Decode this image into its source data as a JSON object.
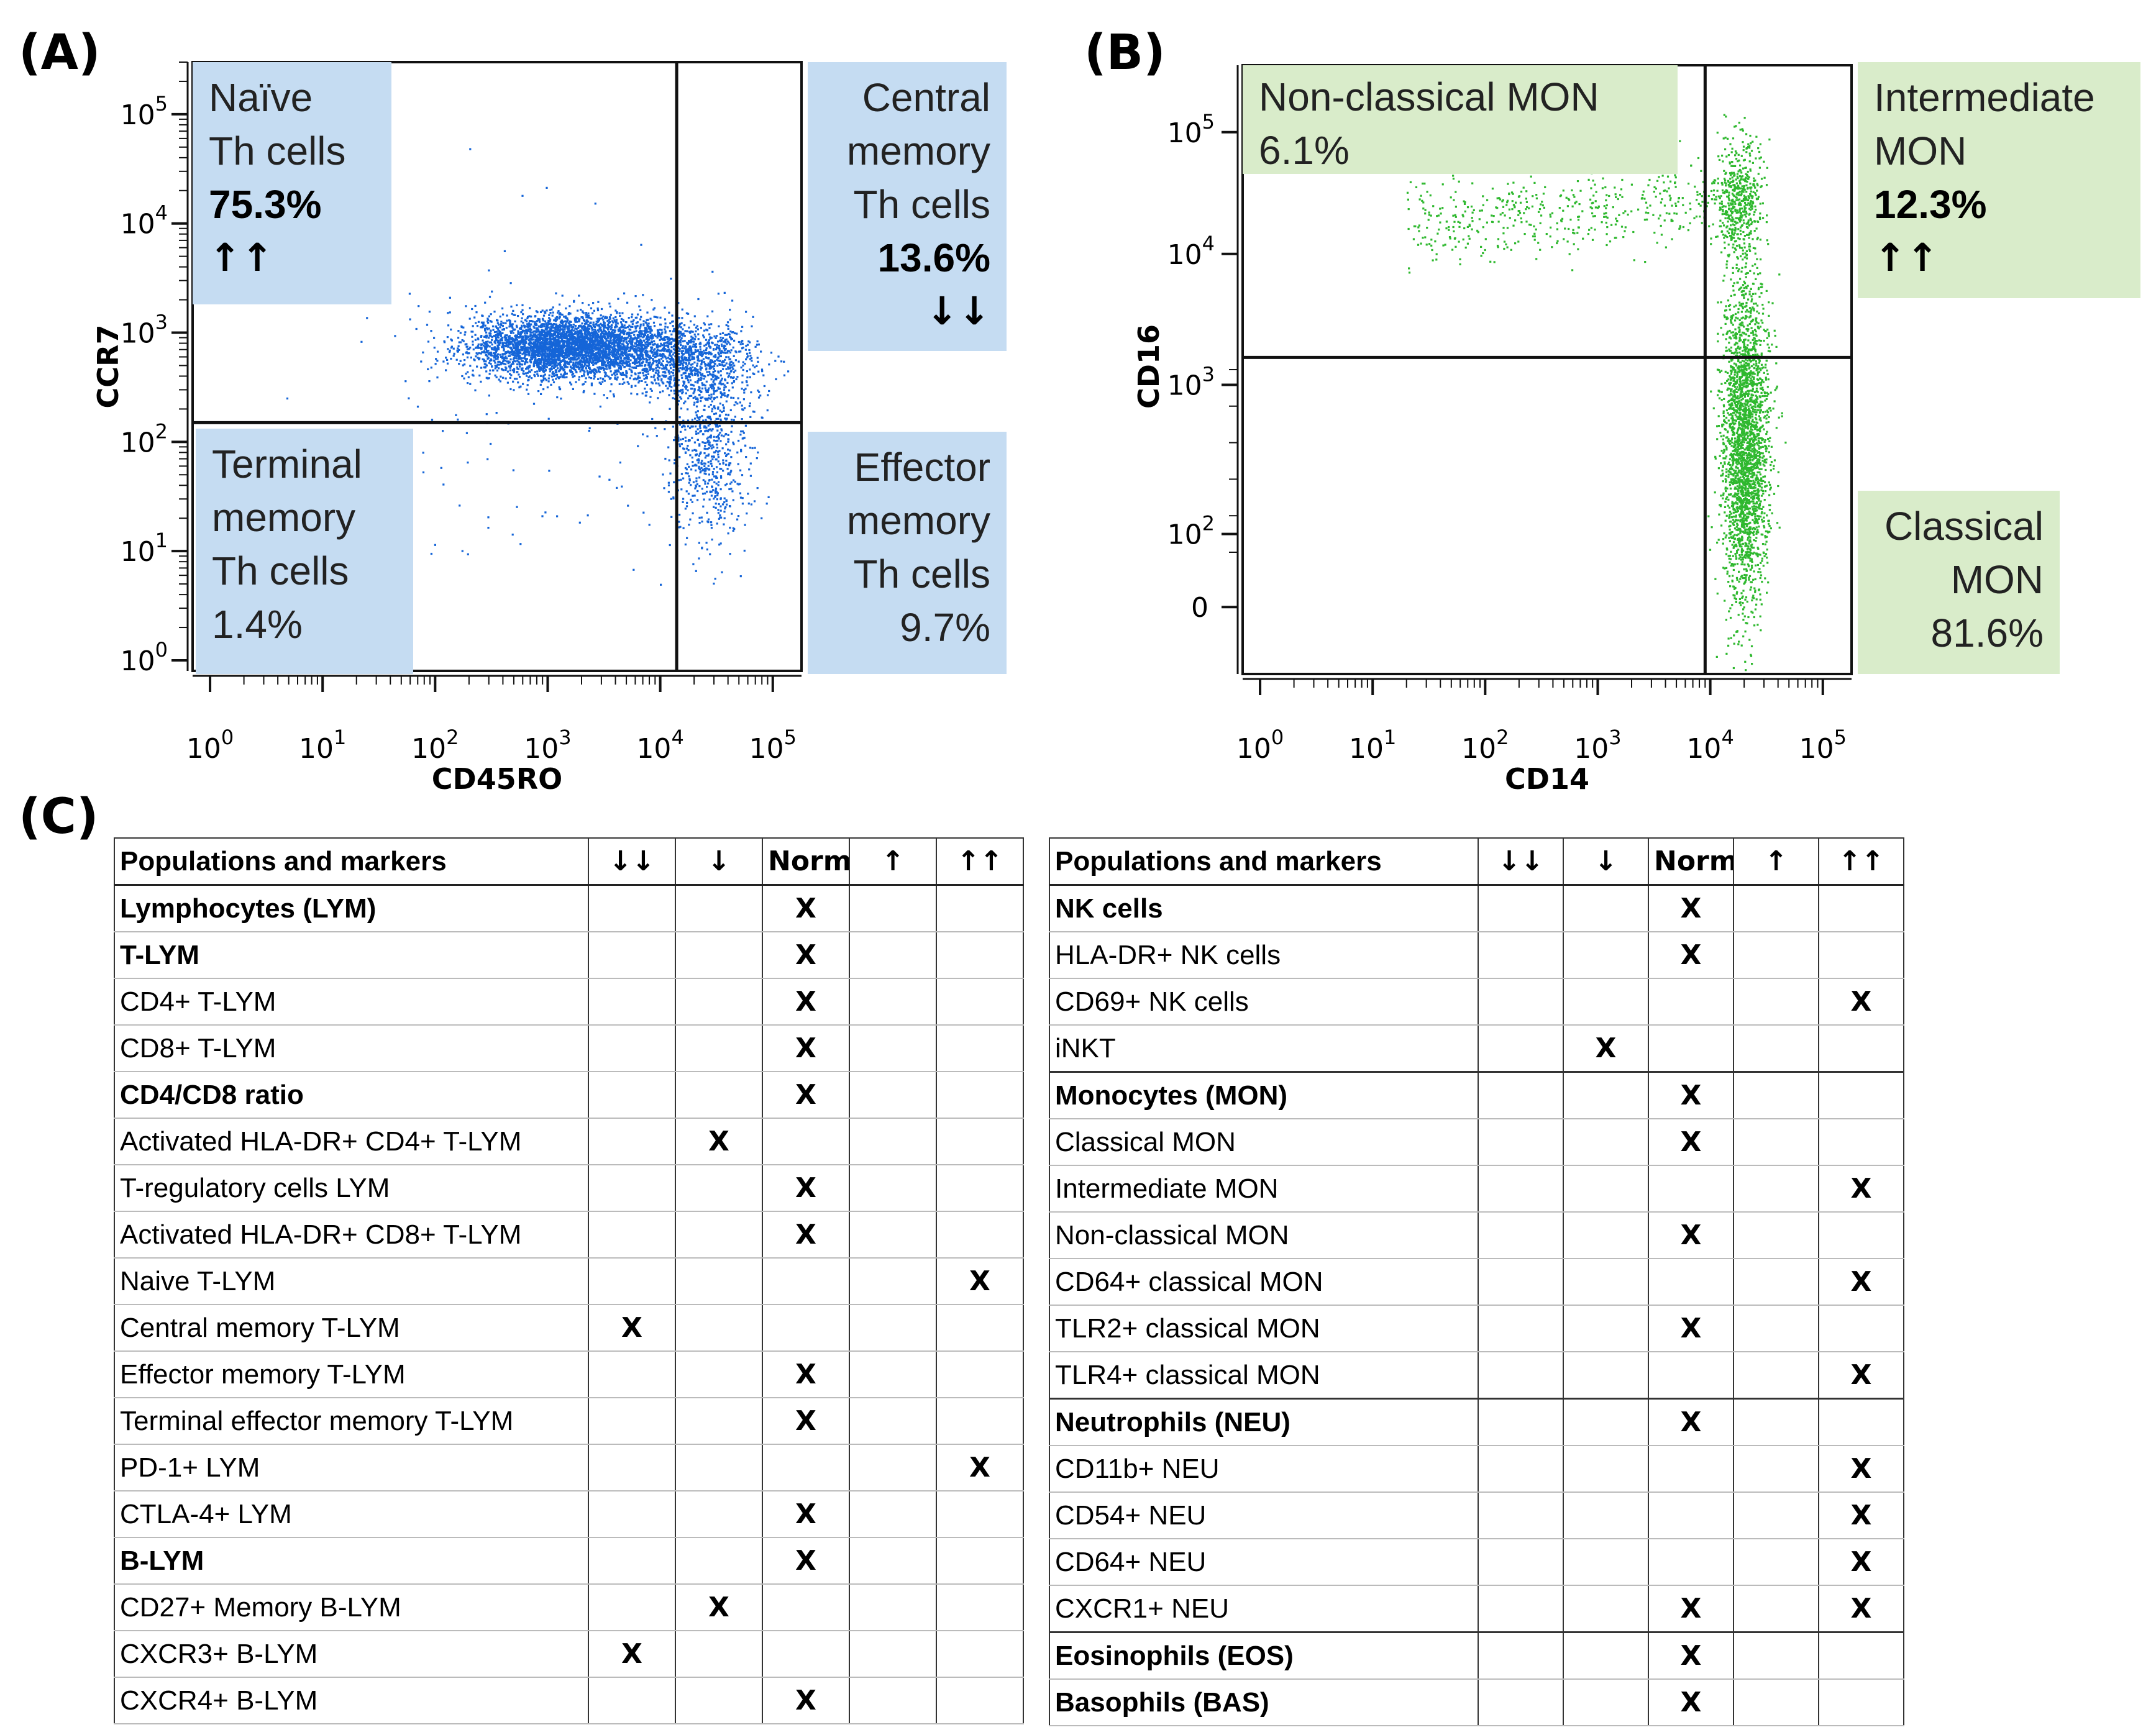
{
  "panels": {
    "a": "(A)",
    "b": "(B)",
    "c": "(C)"
  },
  "colors": {
    "blue_dots": "#1565d8",
    "green_dots": "#2eb82e",
    "blue_label_bg": "#c5dcf2",
    "green_label_bg": "#d9ecca"
  },
  "chart_data": [
    {
      "type": "scatter",
      "title": "",
      "xlabel": "CD45RO",
      "ylabel": "CCR7",
      "x_scale": "log",
      "y_scale": "log",
      "xlim": [
        0.7,
        180000
      ],
      "ylim": [
        0.8,
        300000
      ],
      "x_ticks": [
        "10^0",
        "10^1",
        "10^2",
        "10^3",
        "10^4",
        "10^5"
      ],
      "y_ticks": [
        "10^0",
        "10^1",
        "10^2",
        "10^3",
        "10^4",
        "10^5"
      ],
      "gates": {
        "x": 14000,
        "y": 150
      },
      "quadrants": [
        {
          "name": "Naïve Th cells",
          "lines": [
            "Naïve",
            "Th cells"
          ],
          "percent": "75.3%",
          "trend": "↑↑",
          "position": "top-left"
        },
        {
          "name": "Central memory Th cells",
          "lines": [
            "Central",
            "memory",
            "Th cells"
          ],
          "percent": "13.6%",
          "trend": "↓↓",
          "position": "top-right"
        },
        {
          "name": "Terminal memory Th cells",
          "lines": [
            "Terminal",
            "memory",
            "Th cells"
          ],
          "percent": "1.4%",
          "trend": "",
          "position": "bottom-left"
        },
        {
          "name": "Effector memory Th cells",
          "lines": [
            "Effector",
            "memory",
            "Th cells"
          ],
          "percent": "9.7%",
          "trend": "",
          "position": "bottom-right"
        }
      ],
      "populations": [
        {
          "center_log_x": 3.2,
          "center_log_y": 2.88,
          "spread_x": 0.45,
          "spread_y": 0.14,
          "n": 4200
        },
        {
          "center_log_x": 4.25,
          "center_log_y": 2.75,
          "spread_x": 0.3,
          "spread_y": 0.18,
          "n": 900
        },
        {
          "center_log_x": 4.45,
          "center_log_y": 2.0,
          "spread_x": 0.18,
          "spread_y": 0.45,
          "n": 700
        },
        {
          "center_log_x": 2.9,
          "center_log_y": 2.3,
          "spread_x": 0.9,
          "spread_y": 0.9,
          "n": 120
        }
      ]
    },
    {
      "type": "scatter",
      "title": "",
      "xlabel": "CD14",
      "ylabel": "CD16",
      "x_scale": "log",
      "y_scale": "biexponential",
      "xlim": [
        0.7,
        180000
      ],
      "x_ticks": [
        "10^0",
        "10^1",
        "10^2",
        "10^3",
        "10^4",
        "10^5"
      ],
      "y_ticks": [
        "0",
        "10^2",
        "10^3",
        "10^4",
        "10^5"
      ],
      "gates": {
        "x": 9000,
        "y": 1600
      },
      "quadrants": [
        {
          "name": "Non-classical MON",
          "lines": [
            "Non-classical MON"
          ],
          "percent": "6.1%",
          "trend": "",
          "position": "top-left"
        },
        {
          "name": "Intermediate MON",
          "lines": [
            "Intermediate",
            "MON"
          ],
          "percent": "12.3%",
          "trend": "↑↑",
          "position": "top-right"
        },
        {
          "name": "Classical MON",
          "lines": [
            "Classical",
            "MON"
          ],
          "percent": "81.6%",
          "trend": "",
          "position": "bottom-right"
        }
      ],
      "populations": [
        {
          "center_log_x": 4.3,
          "y_frac": 0.62,
          "spread_x": 0.1,
          "spread_y": 0.13,
          "n": 2600
        },
        {
          "center_log_x": 4.25,
          "y_frac": 0.22,
          "spread_x": 0.1,
          "spread_y": 0.05,
          "n": 500
        },
        {
          "center_log_x": 3.2,
          "y_frac": 0.2,
          "spread_x": 1.0,
          "spread_y": 0.05,
          "n": 500
        }
      ]
    }
  ],
  "table": {
    "header": {
      "name": "Populations and markers",
      "cols": [
        "↓↓",
        "↓",
        "Norm",
        "↑",
        "↑↑"
      ]
    },
    "mark": "X",
    "left": [
      {
        "name": "Lymphocytes (LYM)",
        "bold": true,
        "mark": [
          2
        ]
      },
      {
        "name": "T-LYM",
        "bold": true,
        "mark": [
          2
        ]
      },
      {
        "name": "CD4+ T-LYM",
        "bold": false,
        "mark": [
          2
        ]
      },
      {
        "name": "CD8+ T-LYM",
        "bold": false,
        "mark": [
          2
        ]
      },
      {
        "name": "CD4/CD8 ratio",
        "bold": true,
        "mark": [
          2
        ]
      },
      {
        "name": "Activated HLA-DR+ CD4+ T-LYM",
        "bold": false,
        "mark": [
          1
        ]
      },
      {
        "name": "T-regulatory cells LYM",
        "bold": false,
        "mark": [
          2
        ]
      },
      {
        "name": "Activated HLA-DR+ CD8+ T-LYM",
        "bold": false,
        "mark": [
          2
        ]
      },
      {
        "name": "Naive T-LYM",
        "bold": false,
        "mark": [
          4
        ]
      },
      {
        "name": "Central memory T-LYM",
        "bold": false,
        "mark": [
          0
        ]
      },
      {
        "name": "Effector memory T-LYM",
        "bold": false,
        "mark": [
          2
        ]
      },
      {
        "name": "Terminal effector memory T-LYM",
        "bold": false,
        "mark": [
          2
        ]
      },
      {
        "name": "PD-1+ LYM",
        "bold": false,
        "mark": [
          4
        ]
      },
      {
        "name": "CTLA-4+ LYM",
        "bold": false,
        "mark": [
          2
        ]
      },
      {
        "name": "B-LYM",
        "bold": true,
        "mark": [
          2
        ]
      },
      {
        "name": "CD27+ Memory B-LYM",
        "bold": false,
        "mark": [
          1
        ]
      },
      {
        "name": "CXCR3+ B-LYM",
        "bold": false,
        "mark": [
          0
        ]
      },
      {
        "name": "CXCR4+ B-LYM",
        "bold": false,
        "mark": [
          2
        ]
      }
    ],
    "right": [
      {
        "name": "NK cells",
        "bold": true,
        "mark": [
          2
        ],
        "sep": false
      },
      {
        "name": "HLA-DR+ NK cells",
        "bold": false,
        "mark": [
          2
        ],
        "sep": false
      },
      {
        "name": "CD69+ NK cells",
        "bold": false,
        "mark": [
          4
        ],
        "sep": false
      },
      {
        "name": "iNKT",
        "bold": false,
        "mark": [
          1
        ],
        "sep": false
      },
      {
        "name": "Monocytes (MON)",
        "bold": true,
        "mark": [
          2
        ],
        "sep": true
      },
      {
        "name": "Classical MON",
        "bold": false,
        "mark": [
          2
        ],
        "sep": false
      },
      {
        "name": "Intermediate MON",
        "bold": false,
        "mark": [
          4
        ],
        "sep": false
      },
      {
        "name": "Non-classical MON",
        "bold": false,
        "mark": [
          2
        ],
        "sep": false
      },
      {
        "name": "CD64+ classical MON",
        "bold": false,
        "mark": [
          4
        ],
        "sep": false
      },
      {
        "name": "TLR2+ classical MON",
        "bold": false,
        "mark": [
          2
        ],
        "sep": false
      },
      {
        "name": "TLR4+ classical MON",
        "bold": false,
        "mark": [
          4
        ],
        "sep": false
      },
      {
        "name": "Neutrophils (NEU)",
        "bold": true,
        "mark": [
          2
        ],
        "sep": true
      },
      {
        "name": "CD11b+ NEU",
        "bold": false,
        "mark": [
          4
        ],
        "sep": false
      },
      {
        "name": "CD54+ NEU",
        "bold": false,
        "mark": [
          4
        ],
        "sep": false
      },
      {
        "name": "CD64+ NEU",
        "bold": false,
        "mark": [
          4
        ],
        "sep": false
      },
      {
        "name": "CXCR1+ NEU",
        "bold": false,
        "mark": [
          2,
          4
        ],
        "sep": false
      },
      {
        "name": "Eosinophils (EOS)",
        "bold": true,
        "mark": [
          2
        ],
        "sep": true
      },
      {
        "name": "Basophils (BAS)",
        "bold": true,
        "mark": [
          2
        ],
        "sep": false
      }
    ]
  }
}
